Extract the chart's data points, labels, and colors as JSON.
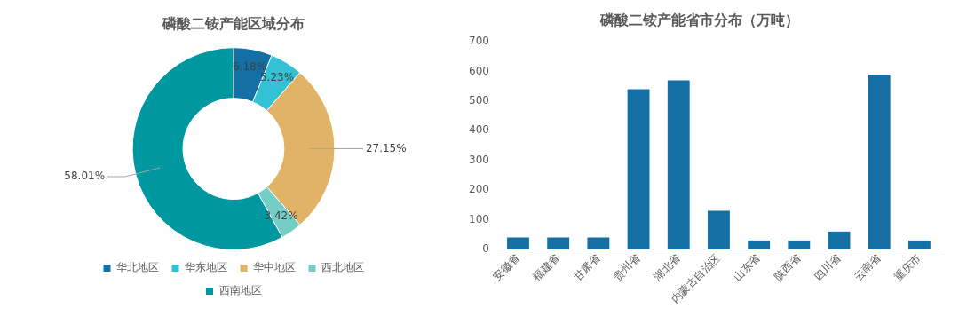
{
  "chart_data": [
    {
      "type": "donut",
      "title": "磷酸二铵产能区域分布",
      "categories": [
        "华北地区",
        "华东地区",
        "华中地区",
        "西北地区",
        "西南地区"
      ],
      "values": [
        6.18,
        5.23,
        27.15,
        3.42,
        58.01
      ],
      "value_labels": [
        "6.18%",
        "5.23%",
        "27.15%",
        "3.42%",
        "58.01%"
      ],
      "colors": [
        "#146fa5",
        "#33c1d5",
        "#e0b366",
        "#74cdc6",
        "#0098a0"
      ],
      "legend": "bottom"
    },
    {
      "type": "bar",
      "title": "磷酸二铵产能省市分布（万吨）",
      "categories": [
        "安徽省",
        "福建省",
        "甘肃省",
        "贵州省",
        "湖北省",
        "内蒙古自治区",
        "山东省",
        "陕西省",
        "四川省",
        "云南省",
        "重庆市"
      ],
      "values": [
        40,
        40,
        40,
        540,
        570,
        130,
        30,
        30,
        60,
        590,
        30
      ],
      "color": "#146fa5",
      "ylim": [
        0,
        700
      ],
      "yticks": [
        0,
        100,
        200,
        300,
        400,
        500,
        600,
        700
      ],
      "grid": false,
      "legend": false
    }
  ]
}
